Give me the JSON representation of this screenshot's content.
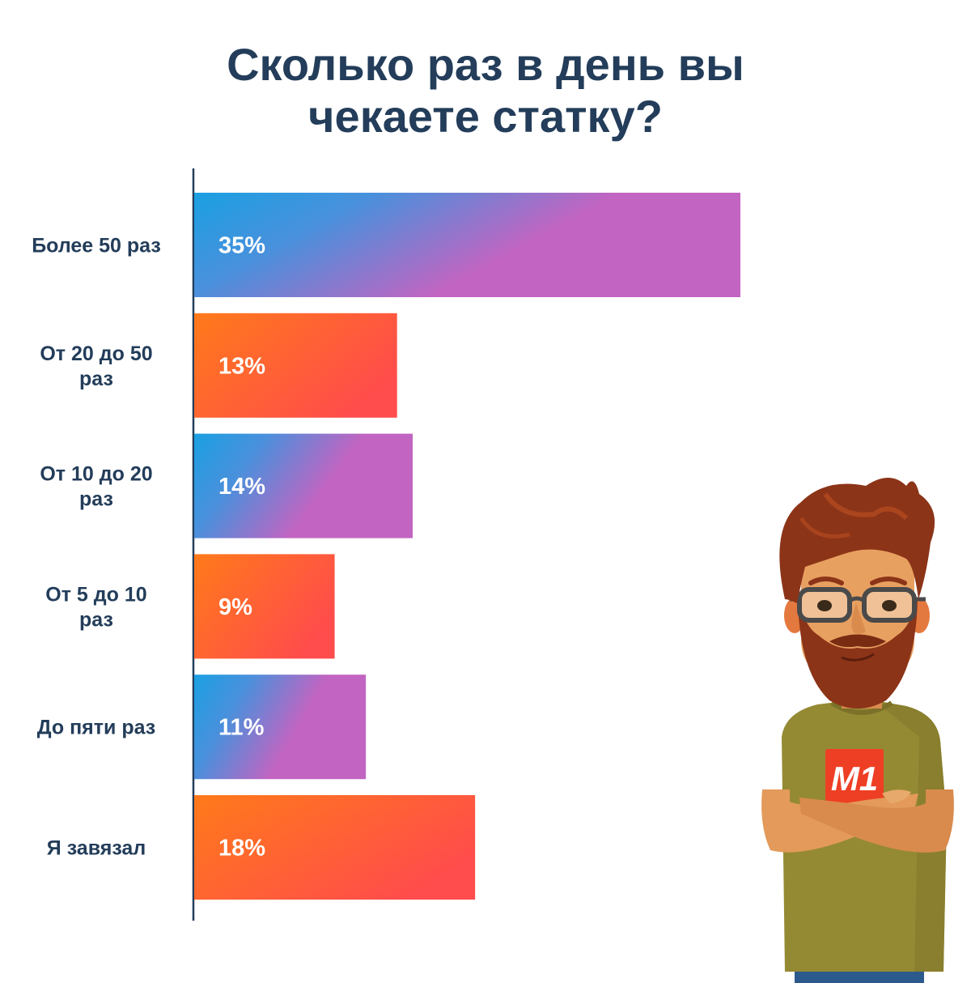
{
  "chart_data": {
    "type": "bar",
    "orientation": "horizontal",
    "title": "Сколько раз в день вы чекаете статку?",
    "title_lines": [
      "Сколько раз в день вы",
      "чекаете статку?"
    ],
    "categories": [
      [
        "Более 50 раз"
      ],
      [
        "От 20 до 50",
        "раз"
      ],
      [
        "От 10 до 20",
        "раз"
      ],
      [
        "От 5 до 10",
        "раз"
      ],
      [
        "До пяти раз"
      ],
      [
        "Я завязал"
      ]
    ],
    "values": [
      35,
      13,
      14,
      9,
      11,
      18
    ],
    "value_labels": [
      "35%",
      "13%",
      "14%",
      "9%",
      "11%",
      "18%"
    ],
    "xlim": [
      0,
      35
    ],
    "grid": false,
    "legend": "none",
    "bar_styles": [
      "blue-purple",
      "orange-red",
      "blue-purple",
      "orange-red",
      "blue-purple",
      "orange-red"
    ]
  },
  "colors": {
    "title": "#233d5a",
    "axis": "#233d5a",
    "blue_start": "#1aa0e2",
    "purple_end": "#c264c1",
    "orange_start": "#ff7a1a",
    "red_end": "#ff4c4c"
  },
  "character": {
    "shirt_logo": "M1",
    "icon": "bearded-man-illustration"
  }
}
